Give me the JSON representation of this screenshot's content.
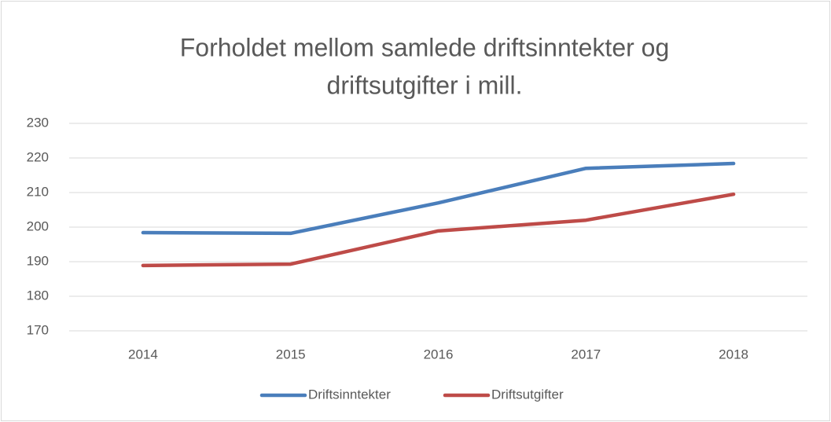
{
  "chart_data": {
    "type": "line",
    "title": [
      "Forholdet mellom samlede driftsinntekter og",
      "driftsutgifter i mill."
    ],
    "categories": [
      "2014",
      "2015",
      "2016",
      "2017",
      "2018"
    ],
    "series": [
      {
        "name": "Driftsinntekter",
        "color": "#4a7ebb",
        "values": [
          198.4,
          198.2,
          207.0,
          217.0,
          218.4
        ]
      },
      {
        "name": "Driftsutgifter",
        "color": "#be4b48",
        "values": [
          188.9,
          189.3,
          198.9,
          202.0,
          209.5
        ]
      }
    ],
    "ylim": [
      170,
      230
    ],
    "yticks": [
      170,
      180,
      190,
      200,
      210,
      220,
      230
    ],
    "grid": true,
    "legend": "bottom"
  }
}
